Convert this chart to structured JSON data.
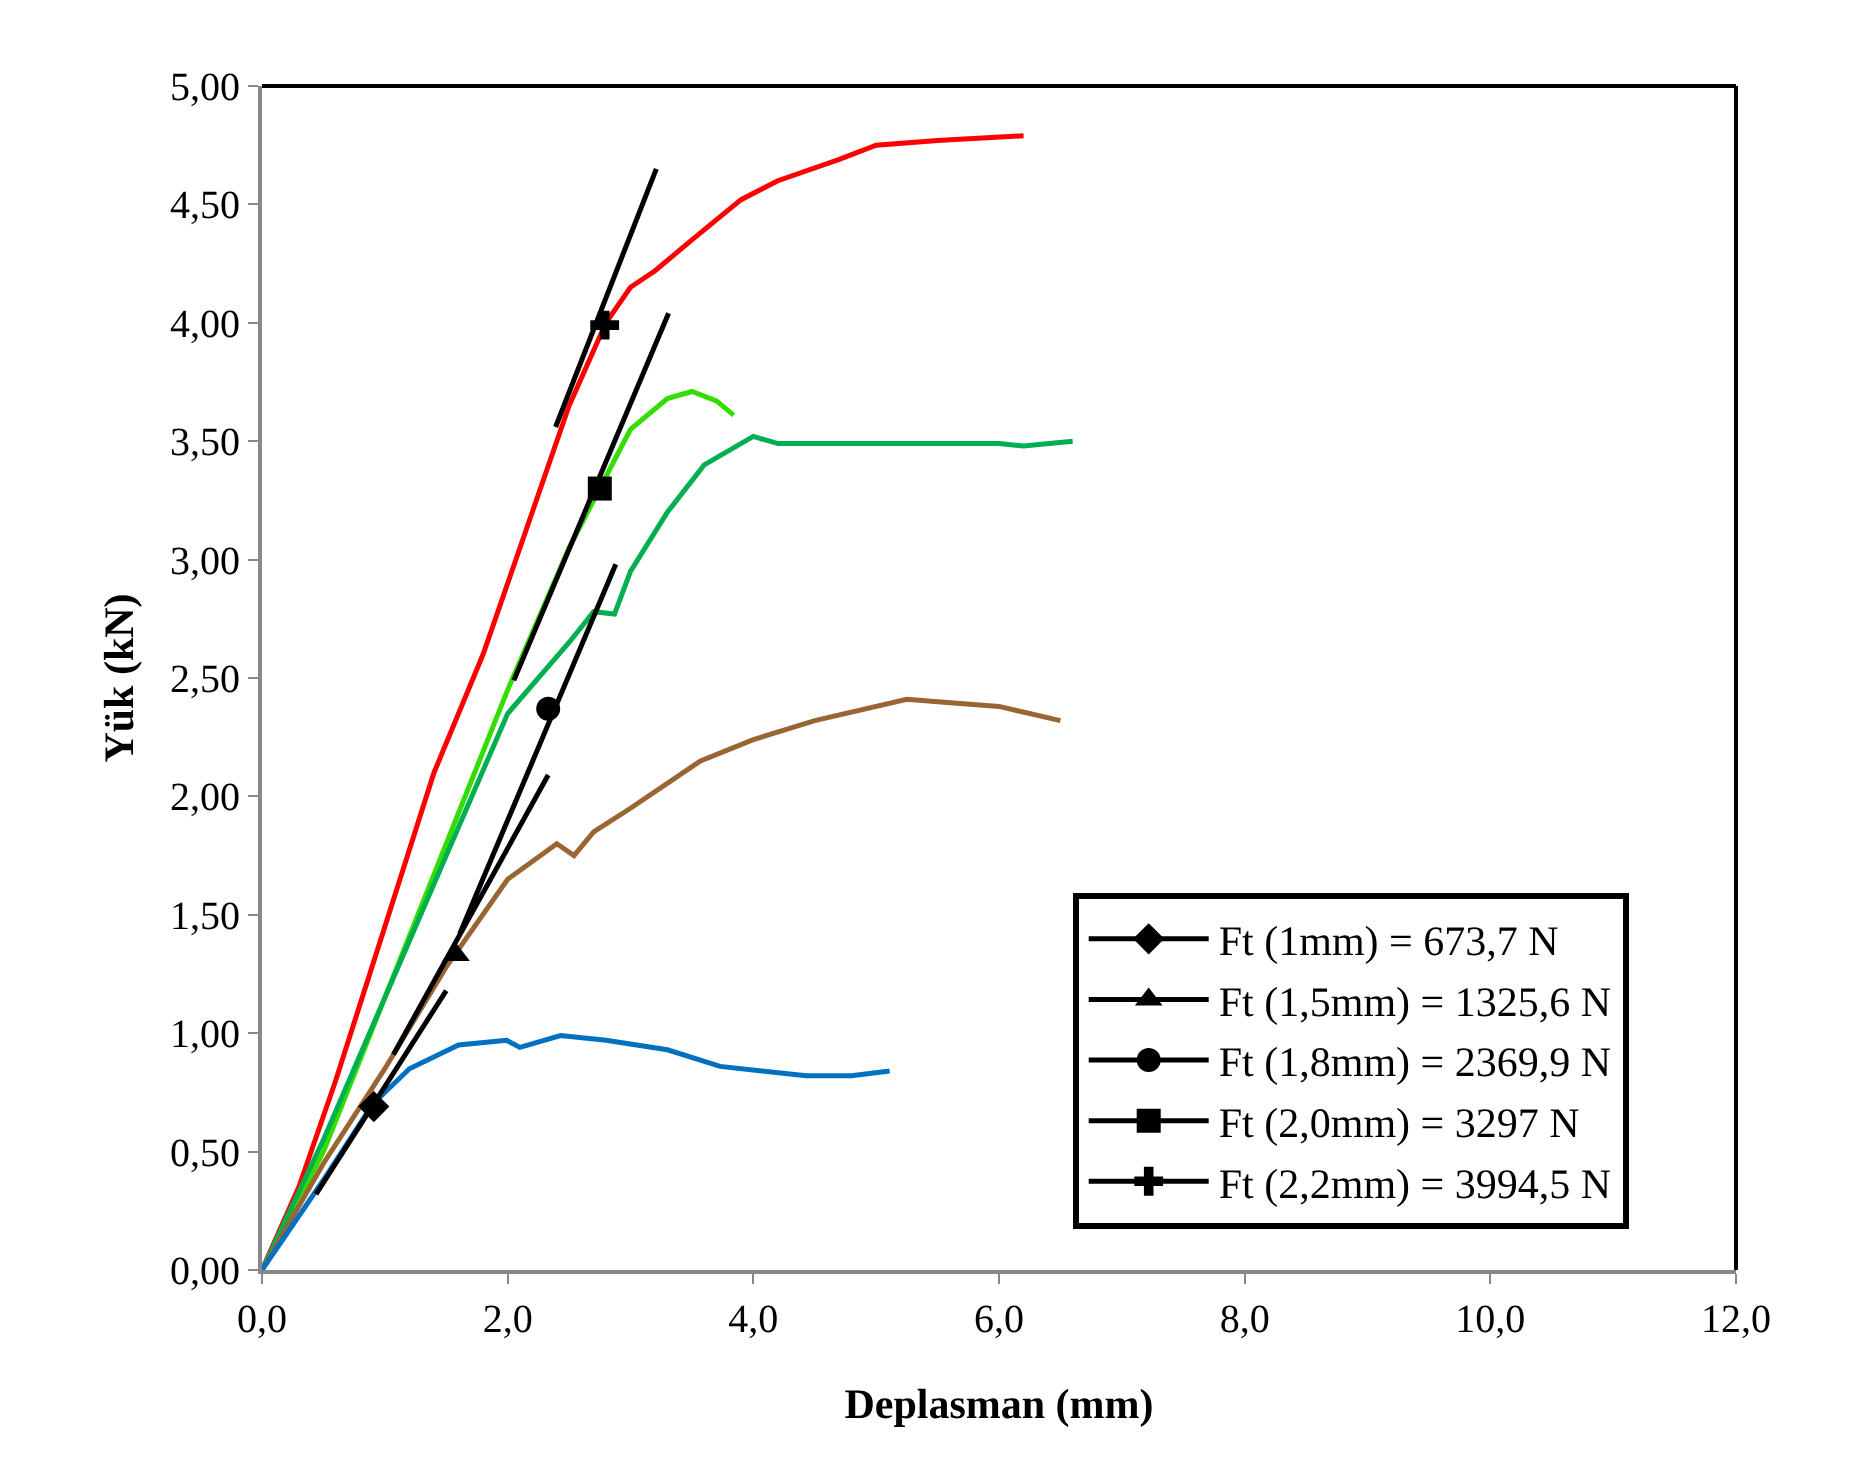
{
  "chart_data": {
    "type": "line",
    "xlabel": "Deplasman (mm)",
    "ylabel": "Yük (kN)",
    "xlim": [
      0,
      12
    ],
    "ylim": [
      0,
      5
    ],
    "xticks": [
      {
        "value": 0,
        "label": "0,0"
      },
      {
        "value": 2,
        "label": "2,0"
      },
      {
        "value": 4,
        "label": "4,0"
      },
      {
        "value": 6,
        "label": "6,0"
      },
      {
        "value": 8,
        "label": "8,0"
      },
      {
        "value": 10,
        "label": "10,0"
      },
      {
        "value": 12,
        "label": "12,0"
      }
    ],
    "yticks": [
      {
        "value": 0,
        "label": "0,00"
      },
      {
        "value": 0.5,
        "label": "0,50"
      },
      {
        "value": 1,
        "label": "1,00"
      },
      {
        "value": 1.5,
        "label": "1,50"
      },
      {
        "value": 2,
        "label": "2,00"
      },
      {
        "value": 2.5,
        "label": "2,50"
      },
      {
        "value": 3,
        "label": "3,00"
      },
      {
        "value": 3.5,
        "label": "3,50"
      },
      {
        "value": 4,
        "label": "4,00"
      },
      {
        "value": 4.5,
        "label": "4,50"
      },
      {
        "value": 5,
        "label": "5,00"
      }
    ],
    "grid": false,
    "legend": "bottom right",
    "line_style": "solid",
    "marker": "none",
    "series": [
      {
        "color": "#ff0000",
        "x": [
          0,
          0.3,
          0.6,
          1.0,
          1.4,
          1.8,
          2.2,
          2.5,
          2.8,
          3.0,
          3.2,
          3.5,
          3.9,
          4.2,
          4.7,
          5.0,
          5.5,
          6.2
        ],
        "values": [
          0,
          0.35,
          0.8,
          1.45,
          2.1,
          2.6,
          3.2,
          3.65,
          4.0,
          4.15,
          4.22,
          4.35,
          4.52,
          4.6,
          4.69,
          4.75,
          4.77,
          4.79
        ]
      },
      {
        "color": "#33dd00",
        "x": [
          0,
          0.5,
          1.0,
          1.5,
          2.0,
          2.5,
          2.8,
          3.0,
          3.3,
          3.5,
          3.7,
          3.84
        ],
        "values": [
          0,
          0.5,
          1.15,
          1.8,
          2.45,
          3.05,
          3.35,
          3.55,
          3.68,
          3.71,
          3.67,
          3.61
        ]
      },
      {
        "color": "#00b050",
        "x": [
          0,
          0.5,
          1.0,
          1.5,
          2.0,
          2.5,
          2.7,
          2.87,
          3.0,
          3.3,
          3.6,
          4.0,
          4.2,
          5.0,
          6.0,
          6.2,
          6.6
        ],
        "values": [
          0,
          0.55,
          1.15,
          1.75,
          2.35,
          2.65,
          2.78,
          2.77,
          2.95,
          3.2,
          3.4,
          3.52,
          3.49,
          3.49,
          3.49,
          3.48,
          3.5
        ]
      },
      {
        "color": "#996633",
        "x": [
          0,
          0.5,
          1.0,
          1.5,
          2.0,
          2.4,
          2.54,
          2.7,
          3.0,
          3.57,
          4.0,
          4.5,
          5.25,
          5.5,
          6.0,
          6.5
        ],
        "values": [
          0,
          0.45,
          0.85,
          1.28,
          1.65,
          1.8,
          1.75,
          1.85,
          1.95,
          2.15,
          2.24,
          2.32,
          2.41,
          2.4,
          2.38,
          2.32
        ]
      },
      {
        "color": "#0070c0",
        "x": [
          0,
          0.5,
          0.9,
          1.2,
          1.6,
          1.99,
          2.1,
          2.43,
          2.8,
          3.3,
          3.73,
          4.43,
          4.8,
          5.11
        ],
        "values": [
          0,
          0.38,
          0.7,
          0.85,
          0.95,
          0.97,
          0.94,
          0.99,
          0.97,
          0.93,
          0.86,
          0.82,
          0.82,
          0.84
        ]
      },
      {
        "color": "#000000",
        "x": [
          0.44,
          1.5
        ],
        "values": [
          0.32,
          1.18
        ]
      },
      {
        "color": "#000000",
        "x": [
          1.07,
          2.33
        ],
        "values": [
          0.91,
          2.09
        ]
      },
      {
        "color": "#000000",
        "x": [
          1.61,
          2.88
        ],
        "values": [
          1.42,
          2.98
        ]
      },
      {
        "color": "#000000",
        "x": [
          2.05,
          3.31
        ],
        "values": [
          2.49,
          4.04
        ]
      },
      {
        "color": "#000000",
        "x": [
          2.39,
          3.21
        ],
        "values": [
          3.56,
          4.65
        ]
      },
      {
        "name": "Ft (1mm) = 673,7 N",
        "color": "#000000",
        "marker": "diamond",
        "x": [
          0.91
        ],
        "values": [
          0.69
        ]
      },
      {
        "name": "Ft (1,5mm) = 1325,6 N",
        "color": "#000000",
        "marker": "triangle",
        "x": [
          1.58
        ],
        "values": [
          1.33
        ]
      },
      {
        "name": "Ft (1,8mm) = 2369,9 N",
        "color": "#000000",
        "marker": "circle",
        "x": [
          2.33
        ],
        "values": [
          2.37
        ]
      },
      {
        "name": "Ft (2,0mm) = 3297 N",
        "color": "#000000",
        "marker": "square",
        "x": [
          2.75
        ],
        "values": [
          3.3
        ]
      },
      {
        "name": "Ft (2,2mm) = 3994,5 N",
        "color": "#000000",
        "marker": "cross",
        "x": [
          2.79
        ],
        "values": [
          3.99
        ]
      }
    ]
  }
}
